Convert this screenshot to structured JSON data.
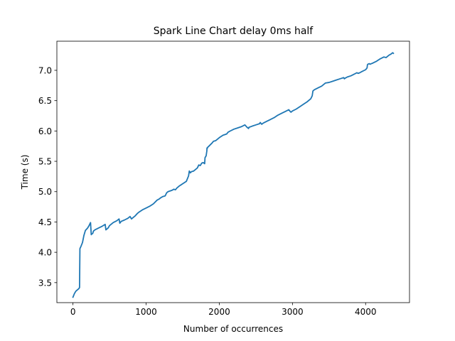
{
  "chart_data": {
    "type": "line",
    "title": "Spark Line Chart delay 0ms half",
    "xlabel": "Number of occurrences",
    "ylabel": "Time (s)",
    "xlim": [
      -220,
      4600
    ],
    "ylim": [
      3.17,
      7.48
    ],
    "xticks": [
      0,
      1000,
      2000,
      3000,
      4000
    ],
    "xtick_labels": [
      "0",
      "1000",
      "2000",
      "3000",
      "4000"
    ],
    "yticks": [
      3.5,
      4.0,
      4.5,
      5.0,
      5.5,
      6.0,
      6.5,
      7.0
    ],
    "ytick_labels": [
      "3.5",
      "4.0",
      "4.5",
      "5.0",
      "5.5",
      "6.0",
      "6.5",
      "7.0"
    ],
    "grid": false,
    "series": [
      {
        "color": "#1f77b4",
        "x": [
          0,
          20,
          40,
          60,
          80,
          90,
          95,
          110,
          130,
          150,
          170,
          200,
          220,
          240,
          250,
          252,
          270,
          280,
          290,
          300,
          350,
          400,
          440,
          450,
          460,
          480,
          500,
          550,
          600,
          630,
          640,
          660,
          700,
          750,
          780,
          800,
          820,
          830,
          850,
          880,
          900,
          950,
          1000,
          1050,
          1100,
          1150,
          1180,
          1200,
          1230,
          1260,
          1280,
          1290,
          1300,
          1350,
          1380,
          1400,
          1420,
          1450,
          1500,
          1550,
          1580,
          1590,
          1600,
          1605,
          1620,
          1650,
          1700,
          1720,
          1740,
          1760,
          1780,
          1800,
          1805,
          1820,
          1830,
          1832,
          1835,
          1840,
          1850,
          1900,
          1920,
          1950,
          2000,
          2050,
          2100,
          2120,
          2150,
          2200,
          2250,
          2300,
          2350,
          2380,
          2400,
          2405,
          2450,
          2500,
          2550,
          2560,
          2580,
          2600,
          2650,
          2700,
          2750,
          2800,
          2850,
          2900,
          2950,
          2970,
          2980,
          3000,
          3050,
          3100,
          3150,
          3200,
          3250,
          3270,
          3280,
          3300,
          3350,
          3400,
          3450,
          3500,
          3550,
          3600,
          3650,
          3700,
          3710,
          3720,
          3750,
          3800,
          3850,
          3880,
          3900,
          3920,
          3950,
          4000,
          4020,
          4025,
          4030,
          4050,
          4060,
          4080,
          4100,
          4150,
          4200,
          4250,
          4280,
          4300,
          4320,
          4350,
          4370,
          4380
        ],
        "y": [
          3.26,
          3.32,
          3.36,
          3.38,
          3.4,
          3.42,
          4.06,
          4.1,
          4.16,
          4.28,
          4.36,
          4.4,
          4.44,
          4.49,
          4.29,
          4.3,
          4.31,
          4.35,
          4.36,
          4.37,
          4.4,
          4.43,
          4.46,
          4.37,
          4.38,
          4.4,
          4.44,
          4.49,
          4.52,
          4.55,
          4.48,
          4.51,
          4.53,
          4.56,
          4.59,
          4.55,
          4.57,
          4.58,
          4.6,
          4.64,
          4.66,
          4.7,
          4.73,
          4.76,
          4.8,
          4.86,
          4.88,
          4.9,
          4.92,
          4.93,
          4.98,
          4.99,
          5.0,
          5.02,
          5.04,
          5.03,
          5.06,
          5.09,
          5.13,
          5.17,
          5.26,
          5.34,
          5.32,
          5.31,
          5.33,
          5.34,
          5.39,
          5.44,
          5.43,
          5.47,
          5.48,
          5.46,
          5.56,
          5.59,
          5.67,
          5.72,
          5.71,
          5.73,
          5.74,
          5.8,
          5.83,
          5.84,
          5.89,
          5.93,
          5.95,
          5.98,
          6.0,
          6.03,
          6.05,
          6.07,
          6.1,
          6.06,
          6.04,
          6.06,
          6.08,
          6.1,
          6.12,
          6.14,
          6.11,
          6.13,
          6.16,
          6.19,
          6.22,
          6.26,
          6.29,
          6.32,
          6.35,
          6.32,
          6.31,
          6.33,
          6.36,
          6.4,
          6.44,
          6.48,
          6.53,
          6.58,
          6.66,
          6.68,
          6.71,
          6.74,
          6.79,
          6.8,
          6.82,
          6.84,
          6.86,
          6.88,
          6.86,
          6.87,
          6.89,
          6.91,
          6.94,
          6.96,
          6.95,
          6.96,
          6.98,
          7.01,
          7.04,
          7.09,
          7.1,
          7.11,
          7.1,
          7.11,
          7.12,
          7.15,
          7.19,
          7.22,
          7.21,
          7.23,
          7.25,
          7.27,
          7.29,
          7.28
        ]
      }
    ]
  }
}
